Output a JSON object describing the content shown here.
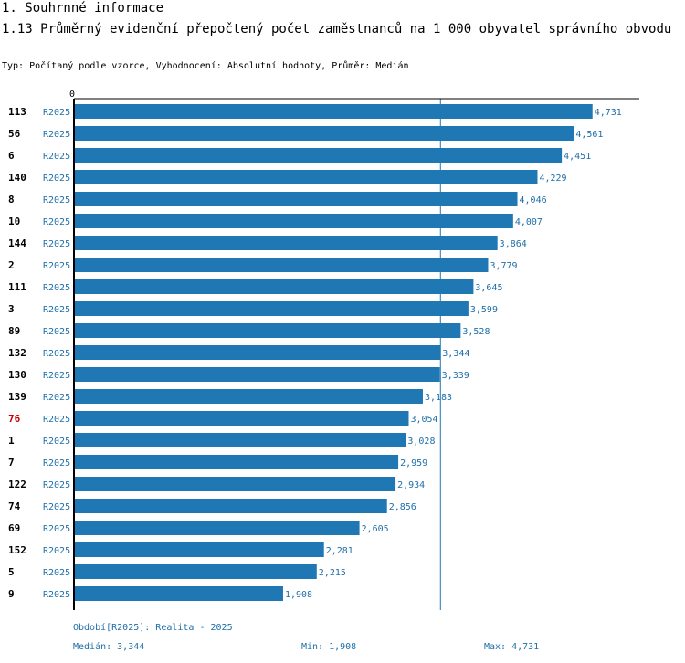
{
  "section_title": "1. Souhrnné informace",
  "chart_title": "1.13 Průměrný evidenční přepočtený počet zaměstnanců na 1 000 obyvatel správního obvodu",
  "subtitle": "Typ: Počítaný podle vzorce, Vyhodnocení: Absolutní hodnoty, Průměr: Medián",
  "colors": {
    "bar": "#1f77b4",
    "highlight_label": "#cc0000",
    "axis": "#000000",
    "median_line": "#1f77b4",
    "text_blue": "#1f6fa8"
  },
  "chart_data": {
    "type": "bar",
    "orientation": "horizontal",
    "xlim": [
      0,
      5000
    ],
    "axis_tick_label": "0",
    "series_label": "R2025",
    "median_value": 3.344,
    "highlighted_category": "76",
    "categories": [
      "113",
      "56",
      "6",
      "140",
      "8",
      "10",
      "144",
      "2",
      "111",
      "3",
      "89",
      "132",
      "130",
      "139",
      "76",
      "1",
      "7",
      "122",
      "74",
      "69",
      "152",
      "5",
      "9"
    ],
    "values": [
      4.731,
      4.561,
      4.451,
      4.229,
      4.046,
      4.007,
      3.864,
      3.779,
      3.645,
      3.599,
      3.528,
      3.344,
      3.339,
      3.183,
      3.054,
      3.028,
      2.959,
      2.934,
      2.856,
      2.605,
      2.281,
      2.215,
      1.908
    ],
    "value_labels": [
      "4,731",
      "4,561",
      "4,451",
      "4,229",
      "4,046",
      "4,007",
      "3,864",
      "3,779",
      "3,645",
      "3,599",
      "3,528",
      "3,344",
      "3,339",
      "3,183",
      "3,054",
      "3,028",
      "2,959",
      "2,934",
      "2,856",
      "2,605",
      "2,281",
      "2,215",
      "1,908"
    ]
  },
  "footer": {
    "period": "Období[R2025]: Realita - 2025",
    "median": "Medián: 3,344",
    "min": "Min: 1,908",
    "max": "Max: 4,731"
  }
}
